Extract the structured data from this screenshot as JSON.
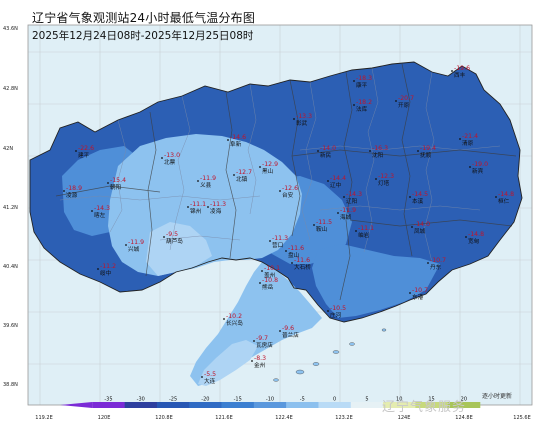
{
  "title": "辽宁省气象观测站24小时最低气温分布图",
  "period": "2025年12月24日08时-2025年12月25日08时",
  "lat_labels": [
    "43.6N",
    "42.8N",
    "42N",
    "41.2N",
    "40.4N",
    "39.6N",
    "38.8N"
  ],
  "lon_labels": [
    "119.2E",
    "120E",
    "120.8E",
    "121.6E",
    "122.4E",
    "123.2E",
    "124E",
    "124.8E",
    "125.6E"
  ],
  "legend": {
    "ticks": [
      "-35",
      "-30",
      "-25",
      "-20",
      "-15",
      "-10",
      "-5",
      "0",
      "5",
      "10",
      "15",
      "20"
    ],
    "colors": [
      "#7b2bd6",
      "#2e3f9f",
      "#2757b4",
      "#2f6bc4",
      "#3b7fd1",
      "#5a98dd",
      "#8cc0ee",
      "#b9dbf6",
      "#e6f1f5",
      "#e4ecb0",
      "#c7d97c",
      "#a8c55a"
    ]
  },
  "regions": {
    "deep": "#2c5fb4",
    "mid": "#4f8fd8",
    "light": "#8dc2ef",
    "pale": "#aed4f4",
    "sea": "#dfeff6"
  },
  "stations": [
    {
      "name": "建平",
      "value": "-22.6"
    },
    {
      "name": "北票",
      "value": "-13.0"
    },
    {
      "name": "阜新",
      "value": "-14.6"
    },
    {
      "name": "彰武",
      "value": "-13.3"
    },
    {
      "name": "康平",
      "value": "-18.3"
    },
    {
      "name": "法库",
      "value": "-18.2"
    },
    {
      "name": "西丰",
      "value": "-19.6"
    },
    {
      "name": "开原",
      "value": "-20.7"
    },
    {
      "name": "清原",
      "value": "-21.4"
    },
    {
      "name": "新宾",
      "value": "-19.0"
    },
    {
      "name": "抚顺",
      "value": "-19.4"
    },
    {
      "name": "沈阳",
      "value": "-16.3"
    },
    {
      "name": "新民",
      "value": "-14.0"
    },
    {
      "name": "黑山",
      "value": "-12.9"
    },
    {
      "name": "北镇",
      "value": "-12.7"
    },
    {
      "name": "义县",
      "value": "-11.9"
    },
    {
      "name": "朝阳",
      "value": "-15.4"
    },
    {
      "name": "凌源",
      "value": "-18.9"
    },
    {
      "name": "喀左",
      "value": "-14.3"
    },
    {
      "name": "锦州",
      "value": "-11.1"
    },
    {
      "name": "凌海",
      "value": "-11.3"
    },
    {
      "name": "台安",
      "value": "-12.6"
    },
    {
      "name": "辽中",
      "value": "-14.4"
    },
    {
      "name": "灯塔",
      "value": "-12.3"
    },
    {
      "name": "辽阳",
      "value": "-14.3"
    },
    {
      "name": "本溪",
      "value": "-14.5"
    },
    {
      "name": "桓仁",
      "value": "-14.8"
    },
    {
      "name": "宽甸",
      "value": "-14.8"
    },
    {
      "name": "凤城",
      "value": "-14.0"
    },
    {
      "name": "岫岩",
      "value": "-11.1"
    },
    {
      "name": "丹东",
      "value": "-10.7"
    },
    {
      "name": "东港",
      "value": "-10.7"
    },
    {
      "name": "鞍山",
      "value": "-11.5"
    },
    {
      "name": "海城",
      "value": "-11.9"
    },
    {
      "name": "营口",
      "value": "-11.3"
    },
    {
      "name": "盘山",
      "value": "-11.6"
    },
    {
      "name": "大石桥",
      "value": "-11.6"
    },
    {
      "name": "盖州",
      "value": "-10.1"
    },
    {
      "name": "熊岳",
      "value": "-10.8"
    },
    {
      "name": "兴城",
      "value": "-11.9"
    },
    {
      "name": "绥中",
      "value": "-11.2"
    },
    {
      "name": "庄河",
      "value": "-10.5"
    },
    {
      "name": "长兴岛",
      "value": "-10.2"
    },
    {
      "name": "普兰店",
      "value": "-9.6"
    },
    {
      "name": "瓦房店",
      "value": "-9.7"
    },
    {
      "name": "金州",
      "value": "-8.3"
    },
    {
      "name": "大连",
      "value": "-5.5"
    },
    {
      "name": "葫芦岛",
      "value": "-9.5"
    }
  ],
  "watermark": "辽宁气象服务",
  "update_note": "逐小时更新"
}
